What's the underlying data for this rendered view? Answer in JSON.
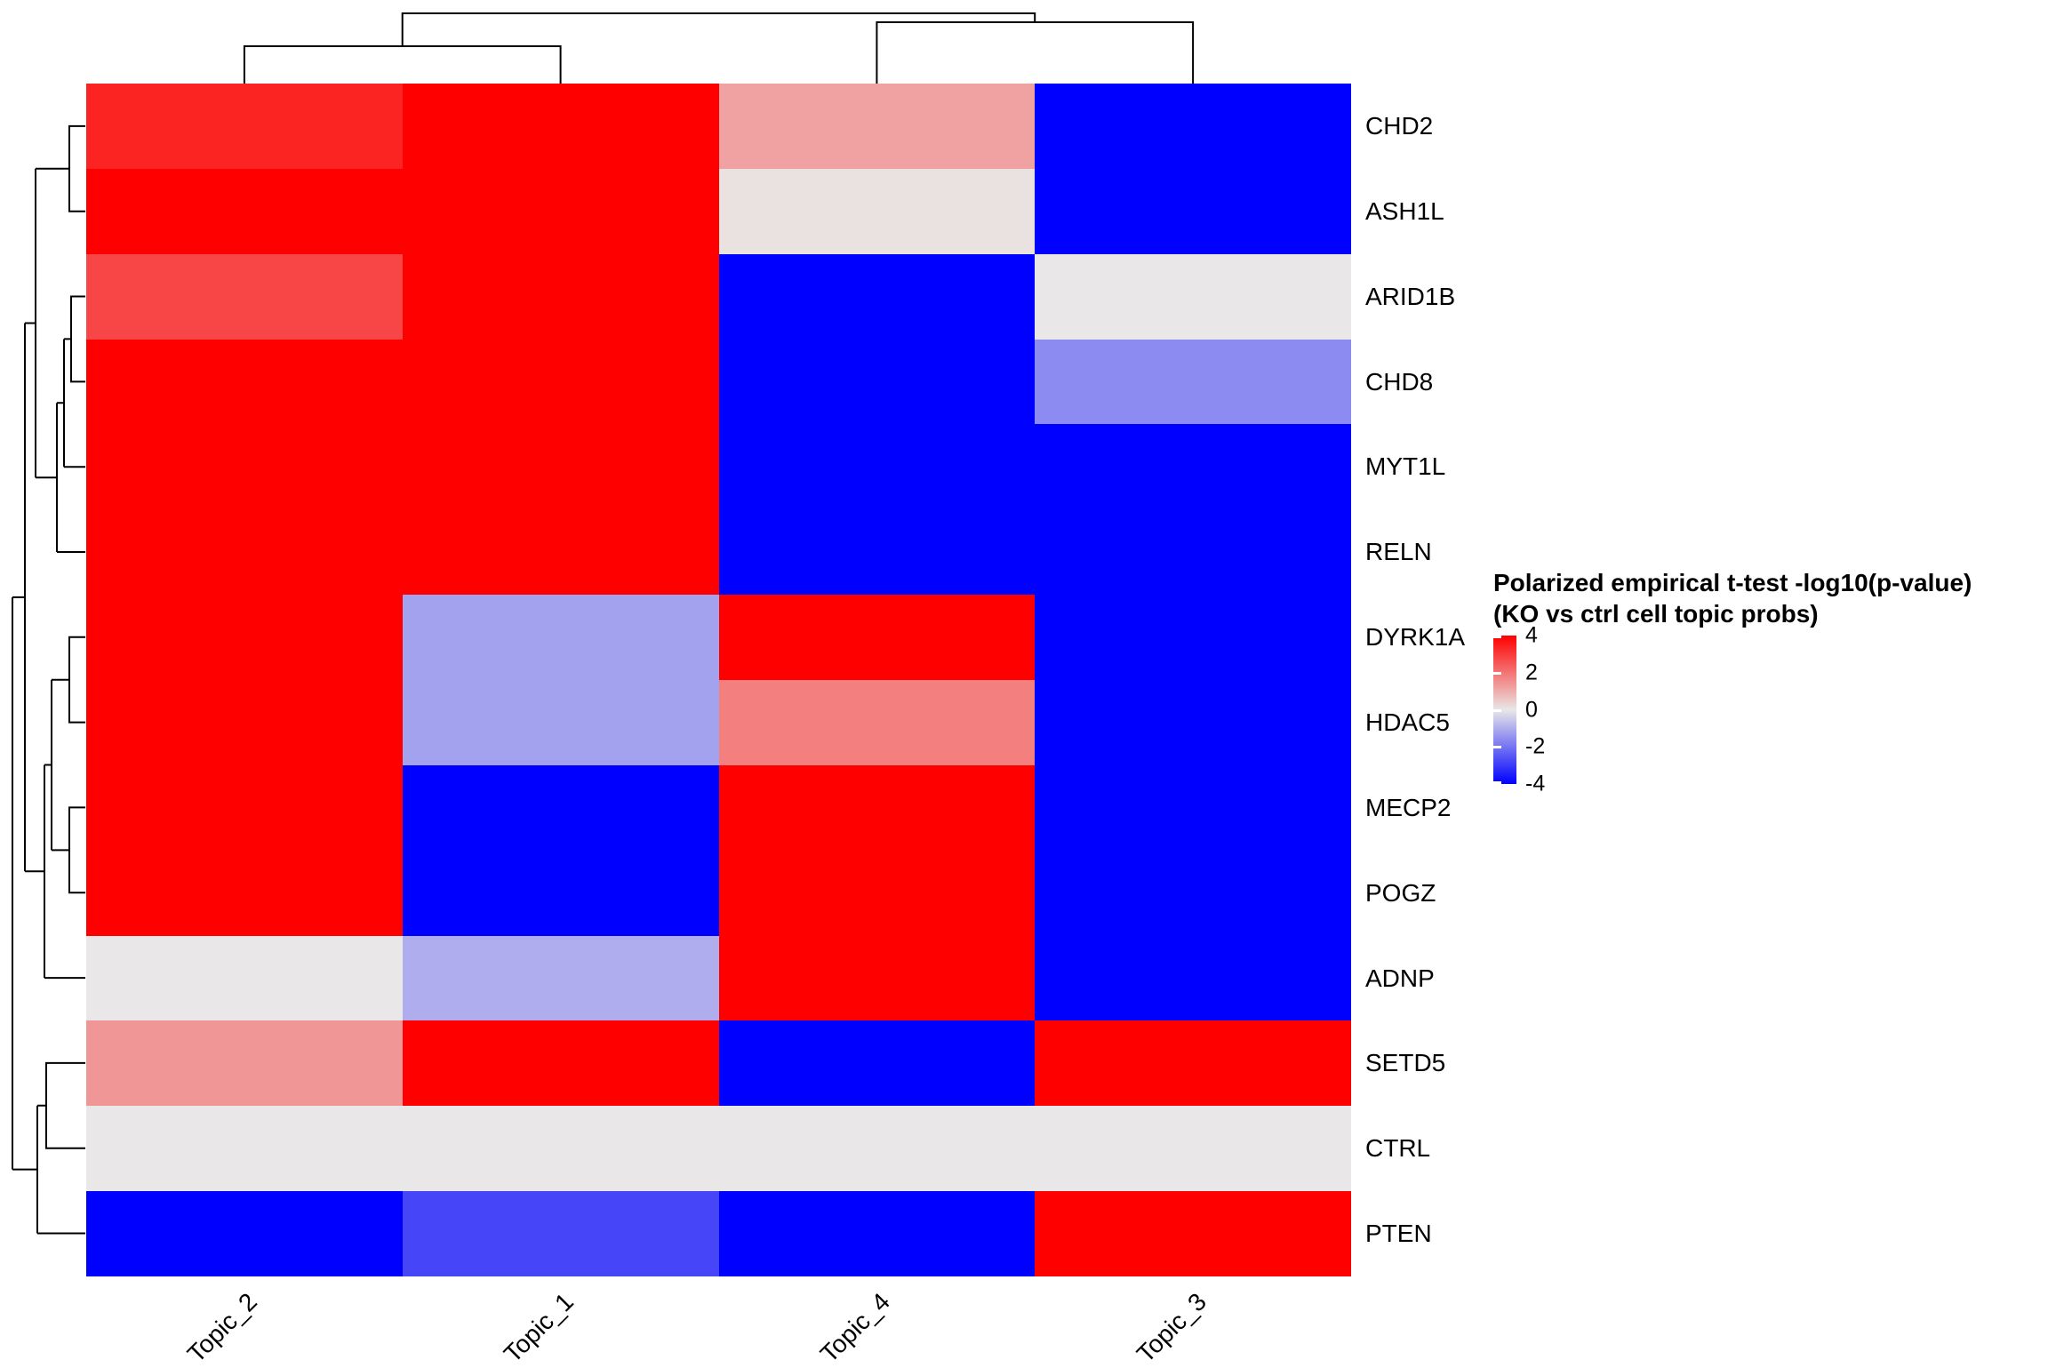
{
  "figure": {
    "background": "#FFFFFF"
  },
  "chart_data": {
    "type": "heatmap",
    "columns": [
      "Topic_2",
      "Topic_1",
      "Topic_4",
      "Topic_3"
    ],
    "rows": [
      "CHD2",
      "ASH1L",
      "ARID1B",
      "CHD8",
      "MYT1L",
      "RELN",
      "DYRK1A",
      "HDAC5",
      "MECP2",
      "POGZ",
      "ADNP",
      "SETD5",
      "CTRL",
      "PTEN"
    ],
    "values": [
      [
        3.4,
        4.5,
        1.2,
        -4.5
      ],
      [
        4.5,
        4.5,
        0.1,
        -4.5
      ],
      [
        2.8,
        4.5,
        -4.5,
        0.0
      ],
      [
        4.5,
        4.5,
        -4.5,
        -1.6
      ],
      [
        4.5,
        4.5,
        -4.5,
        -4.5
      ],
      [
        4.5,
        4.5,
        -4.5,
        -4.5
      ],
      [
        4.5,
        -1.2,
        4.5,
        -4.5
      ],
      [
        4.5,
        -1.2,
        1.8,
        -4.5
      ],
      [
        4.5,
        -4.5,
        4.5,
        -4.5
      ],
      [
        4.5,
        -4.5,
        4.5,
        -4.5
      ],
      [
        0.0,
        -1.0,
        4.5,
        -4.5
      ],
      [
        1.4,
        4.5,
        -4.5,
        4.5
      ],
      [
        0.0,
        0.0,
        0.0,
        0.0
      ],
      [
        -4.5,
        -2.8,
        -4.5,
        4.5
      ]
    ],
    "colorbar": {
      "title_line1": "Polarized empirical t-test -log10(p-value)",
      "title_line2": "(KO vs ctrl cell topic probs)",
      "ticks": [
        4,
        2,
        0,
        -2,
        -4
      ],
      "range": [
        -4,
        4
      ],
      "colors": {
        "max": "#FF0000",
        "mid": "#E9E7E7",
        "min": "#0000FF"
      }
    },
    "clustering": {
      "column_dendrogram": true,
      "row_dendrogram": true,
      "column_clusters": [
        [
          "Topic_2",
          "Topic_1"
        ],
        [
          "Topic_4",
          "Topic_3"
        ]
      ],
      "row_bottom_cluster": [
        "SETD5",
        "CTRL",
        "PTEN"
      ]
    },
    "legend_position": "right",
    "grid": false
  }
}
